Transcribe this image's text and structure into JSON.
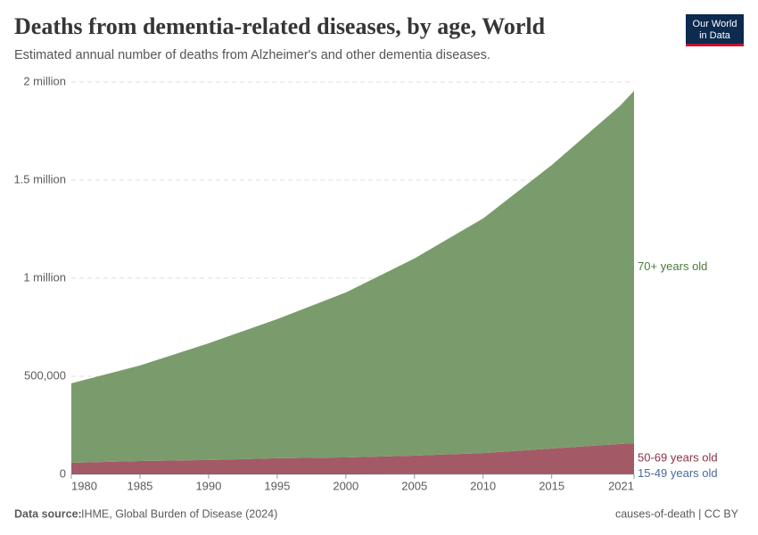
{
  "chart_data": {
    "type": "stacked_area",
    "title": "Deaths from dementia-related diseases, by age, World",
    "subtitle": "Estimated annual number of deaths from Alzheimer's and other dementia diseases.",
    "source_label": "Data source:",
    "source": "IHME, Global Burden of Disease (2024)",
    "footer_right": "causes-of-death | CC BY",
    "logo": [
      "Our World",
      "in Data"
    ],
    "x": [
      1980,
      1985,
      1990,
      1995,
      2000,
      2005,
      2010,
      2015,
      2020,
      2021
    ],
    "series": [
      {
        "name": "15-49 years old",
        "color": "#4c6a9c",
        "values": [
          2000,
          2100,
          2300,
          2400,
          2500,
          2600,
          2700,
          2800,
          2900,
          2900
        ]
      },
      {
        "name": "50-69 years old",
        "color": "#a35a66",
        "values": [
          57000,
          66000,
          71000,
          80000,
          84000,
          93000,
          106000,
          129000,
          152000,
          156000
        ]
      },
      {
        "name": "70+ years old",
        "color": "#7a9c6c",
        "values": [
          405000,
          487000,
          595000,
          709000,
          841000,
          1005000,
          1196000,
          1445000,
          1725000,
          1796000
        ]
      }
    ],
    "xlim": [
      1980,
      2021
    ],
    "xticks": [
      1980,
      1985,
      1990,
      1995,
      2000,
      2005,
      2010,
      2015,
      2021
    ],
    "ylim": [
      0,
      2000000
    ],
    "yticks": [
      0,
      {
        "value": 500000,
        "label": "500,000"
      },
      {
        "value": 1000000,
        "label": "1 million"
      },
      {
        "value": 1500000,
        "label": "1.5 million"
      },
      {
        "value": 2000000,
        "label": "2 million"
      }
    ],
    "grid": true
  }
}
